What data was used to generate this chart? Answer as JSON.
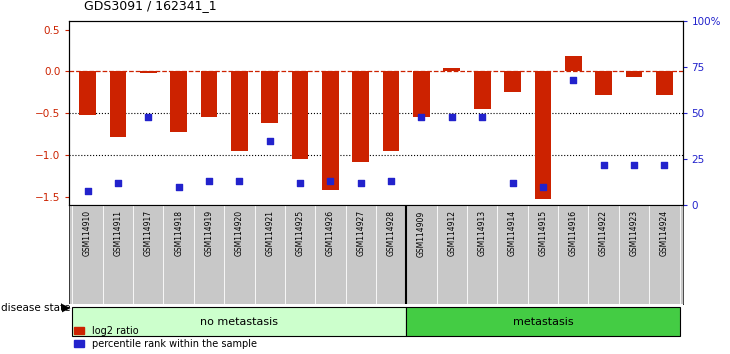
{
  "title": "GDS3091 / 162341_1",
  "samples": [
    "GSM114910",
    "GSM114911",
    "GSM114917",
    "GSM114918",
    "GSM114919",
    "GSM114920",
    "GSM114921",
    "GSM114925",
    "GSM114926",
    "GSM114927",
    "GSM114928",
    "GSM114909",
    "GSM114912",
    "GSM114913",
    "GSM114914",
    "GSM114915",
    "GSM114916",
    "GSM114922",
    "GSM114923",
    "GSM114924"
  ],
  "log2_ratio": [
    -0.52,
    -0.78,
    -0.02,
    -0.72,
    -0.55,
    -0.95,
    -0.62,
    -1.05,
    -1.42,
    -1.08,
    -0.95,
    -0.55,
    0.04,
    -0.45,
    -0.25,
    -1.52,
    0.18,
    -0.28,
    -0.07,
    -0.28
  ],
  "percentile_rank": [
    8,
    12,
    48,
    10,
    13,
    13,
    35,
    12,
    13,
    12,
    13,
    48,
    48,
    48,
    12,
    10,
    68,
    22,
    22,
    22
  ],
  "no_metastasis_count": 11,
  "metastasis_count": 9,
  "ylim_left": [
    -1.6,
    0.6
  ],
  "ylim_right": [
    0,
    100
  ],
  "yticks_left": [
    0.5,
    0,
    -0.5,
    -1.0,
    -1.5
  ],
  "yticks_right": [
    100,
    75,
    50,
    25,
    0
  ],
  "bar_color": "#cc2200",
  "dot_color": "#2222cc",
  "dashed_line_color": "#cc2200",
  "dotted_line_color": "#000000",
  "no_metastasis_color": "#ccffcc",
  "metastasis_color": "#44cc44",
  "label_area_color": "#c8c8c8",
  "bg_color": "#ffffff"
}
